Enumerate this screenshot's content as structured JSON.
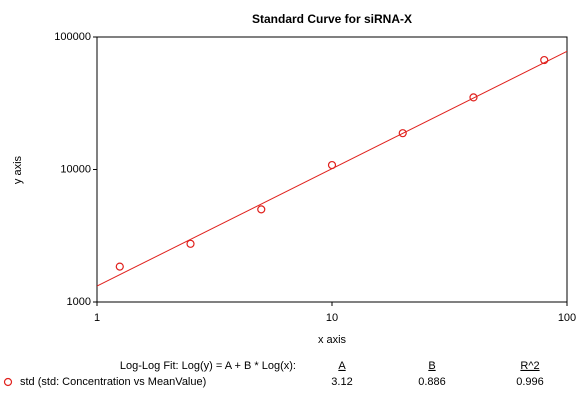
{
  "chart_data": {
    "type": "scatter",
    "title": "Standard Curve for siRNA-X",
    "x_label": "x axis",
    "y_label": "y axis",
    "x": [
      1.25,
      2.5,
      5,
      10,
      20,
      40,
      80
    ],
    "series": [
      {
        "name": "std (std: Concentration vs MeanValue)",
        "color": "#e0201c",
        "values": [
          1850,
          2750,
          5000,
          10800,
          18800,
          35000,
          67000
        ]
      }
    ],
    "xscale": "log",
    "yscale": "log",
    "xlim": [
      1,
      100
    ],
    "ylim": [
      1000,
      100000
    ],
    "xticks": [
      1,
      10,
      100
    ],
    "yticks": [
      1000,
      10000,
      100000
    ],
    "fit": {
      "label": "Log-Log Fit: Log(y) = A + B * Log(x):",
      "columns": [
        {
          "header": "A",
          "value": 3.12
        },
        {
          "header": "B",
          "value": 0.886
        },
        {
          "header": "R^2",
          "value": 0.996
        }
      ]
    }
  }
}
